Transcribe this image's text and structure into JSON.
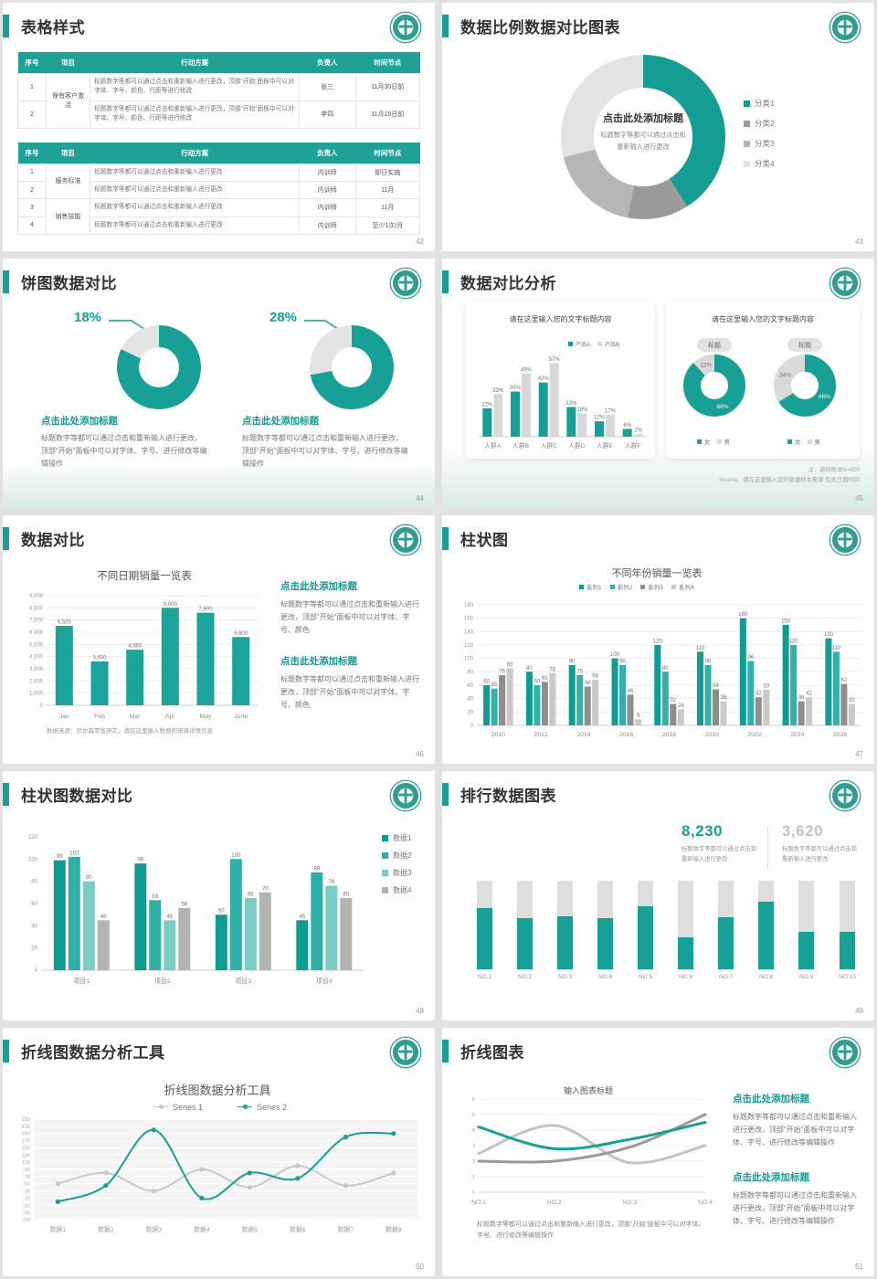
{
  "accent_color": "#17a096",
  "slides": {
    "s42": {
      "title": "表格样式",
      "page": "42",
      "table1": {
        "headers": [
          "序号",
          "项目",
          "行动方案",
          "负责人",
          "时间节点"
        ],
        "group": "保有客户激活",
        "rows": [
          {
            "no": "1",
            "plan": "标题数字等都可以通过点击和重新输入进行更改，顶部“开始”面板中可以对字体、字号、颜色、行距等进行修改",
            "owner": "张三",
            "time": "11月30日前"
          },
          {
            "no": "2",
            "plan": "标题数字等都可以通过点击和重新输入进行更改，顶部“开始”面板中可以对字体、字号、颜色、行距等进行修改",
            "owner": "李四",
            "time": "11月15日前"
          }
        ]
      },
      "table2": {
        "headers": [
          "序号",
          "项目",
          "行动方案",
          "负责人",
          "时间节点"
        ],
        "groups": [
          "服务标准",
          "销售技能"
        ],
        "rows": [
          {
            "no": "1",
            "plan": "标题数字等都可以通过点击和重新输入进行更改",
            "owner": "内训师",
            "time": "即日实施"
          },
          {
            "no": "2",
            "plan": "标题数字等都可以通过点击和重新输入进行更改",
            "owner": "内训师",
            "time": "11月"
          },
          {
            "no": "3",
            "plan": "标题数字等都可以通过点击和重新输入进行更改",
            "owner": "内训师",
            "time": "11月"
          },
          {
            "no": "4",
            "plan": "标题数字等都可以通过点击和重新输入进行更改",
            "owner": "内训师",
            "time": "至少1次/月"
          }
        ]
      }
    },
    "s43": {
      "title": "数据比例数据对比图表",
      "page": "43",
      "center_title": "点击此处添加标题",
      "center_sub1": "标题数字等都可以通过点击和",
      "center_sub2": "重新输入进行更改"
    },
    "s44": {
      "title": "饼图数据对比",
      "page": "44",
      "left": {
        "heading": "点击此处添加标题",
        "body": "标题数字等都可以通过点击和重新输入进行更改，顶部“开始”面板中可以对字体、字号、进行修改等编辑操作"
      },
      "right": {
        "heading": "点击此处添加标题",
        "body": "标题数字等都可以通过点击和重新输入进行更改，顶部“开始”面板中可以对字体、字号、进行修改等编辑操作"
      }
    },
    "s45": {
      "title": "数据对比分析",
      "page": "45",
      "right_card_title": "请在这里输入您的文字标题内容",
      "badge1": "标题",
      "badge2": "标题",
      "note1": "注：调研样本N=500",
      "note2": "Source：请在这里输入您的数据样本来源 包含日期时间"
    },
    "s46": {
      "title": "数据对比",
      "page": "46",
      "source": "数据来源：尼尔森零售研究，请在这里输入数据的来源详情信息",
      "block1": {
        "heading": "点击此处添加标题",
        "body": "标题数字等都可以通过点击和重新输入进行更改，顶部“开始”面板中可以对字体、字号、颜色"
      },
      "block2": {
        "heading": "点击此处添加标题",
        "body": "标题数字等都可以通过点击和重新输入进行更改，顶部“开始”面板中可以对字体、字号、颜色"
      }
    },
    "s47": {
      "title": "柱状图",
      "page": "47"
    },
    "s48": {
      "title": "柱状图数据对比",
      "page": "48"
    },
    "s49": {
      "title": "排行数据图表",
      "page": "49",
      "stat1": {
        "value": "8,230",
        "caption": "标题数字等都可以通过点击和重新输入进行更改"
      },
      "stat2": {
        "value": "3,620",
        "caption": "标题数字等都可以通过点击和重新输入进行更改"
      }
    },
    "s50": {
      "title": "折线图数据分析工具",
      "page": "50"
    },
    "s51": {
      "title": "折线图表",
      "page": "51",
      "block1": {
        "heading": "点击此处添加标题",
        "body": "标题数字等都可以通过点击和重新输入进行更改，顶部“开始”面板中可以对字体、字号、进行修改等编辑操作"
      },
      "block2": {
        "heading": "点击此处添加标题",
        "body": "标题数字等都可以通过点击和重新输入进行更改，顶部“开始”面板中可以对字体、字号、进行修改等编辑操作"
      },
      "footnote": "标题数字等都可以通过点击和重新输入进行更改，顶部“开始”面板中可以对字体、字号、进行修改等编辑操作"
    }
  },
  "chart_data": [
    {
      "id": "donut43",
      "type": "donut",
      "slices": [
        {
          "name": "分类1",
          "value": 41,
          "color": "#149d93"
        },
        {
          "name": "分类2",
          "value": 12,
          "color": "#9a9a9a"
        },
        {
          "name": "分类3",
          "value": 18,
          "color": "#b6b6b6"
        },
        {
          "name": "分类4",
          "value": 29,
          "color": "#e3e3e3"
        }
      ]
    },
    {
      "id": "donut44a",
      "type": "donut",
      "callout": "18%",
      "slices": [
        {
          "value": 82,
          "color": "#17a096"
        },
        {
          "value": 18,
          "color": "#e4e4e4"
        }
      ]
    },
    {
      "id": "donut44b",
      "type": "donut",
      "callout": "28%",
      "slices": [
        {
          "value": 72,
          "color": "#17a096"
        },
        {
          "value": 28,
          "color": "#e4e4e4"
        }
      ]
    },
    {
      "id": "bars45",
      "type": "bar",
      "title": "请在这里输入您的文字标题内容",
      "categories": [
        "人群A",
        "人群B",
        "人群C",
        "人群D",
        "人群E",
        "人群F"
      ],
      "ylim": [
        0,
        68
      ],
      "suffix": "%",
      "show_labels": true,
      "grid": false,
      "series": [
        {
          "name": "产品A",
          "color": "#17a096",
          "values": [
            22,
            35,
            42,
            23,
            12,
            6
          ]
        },
        {
          "name": "产品B",
          "color": "#d8d8d8",
          "values": [
            33,
            49,
            57,
            18,
            17,
            2
          ]
        }
      ]
    },
    {
      "id": "donut45a",
      "type": "donut",
      "show_labels": true,
      "slices": [
        {
          "name": "女",
          "value": 88,
          "color": "#17a096",
          "label": "88%",
          "label_color": "#fff"
        },
        {
          "name": "男",
          "value": 12,
          "color": "#dadada",
          "label": "12%",
          "label_color": "#777"
        }
      ]
    },
    {
      "id": "donut45b",
      "type": "donut",
      "show_labels": true,
      "slices": [
        {
          "name": "女",
          "value": 66,
          "color": "#17a096",
          "label": "66%",
          "label_color": "#fff"
        },
        {
          "name": "男",
          "value": 34,
          "color": "#dadada",
          "label": "34%",
          "label_color": "#777"
        }
      ]
    },
    {
      "id": "bars46",
      "type": "bar",
      "title": "不同日期销量一览表",
      "categories": [
        "Jan",
        "Feb",
        "Mar",
        "Apr",
        "May",
        "June"
      ],
      "ylim": [
        0,
        9000
      ],
      "show_labels": true,
      "yticks": [
        [
          0,
          "0"
        ],
        [
          1000,
          "1,000"
        ],
        [
          2000,
          "2,000"
        ],
        [
          3000,
          "3,000"
        ],
        [
          4000,
          "4,000"
        ],
        [
          5000,
          "5,000"
        ],
        [
          6000,
          "6,000"
        ],
        [
          7000,
          "7,000"
        ],
        [
          8000,
          "8,000"
        ],
        [
          9000,
          "9,000"
        ]
      ],
      "series": [
        {
          "name": "销量",
          "color": "#1ba49a",
          "values": [
            6520,
            3600,
            4560,
            8000,
            7600,
            5600
          ],
          "labels": [
            "6,520",
            "3,600",
            "4,560",
            "8,000",
            "7,600",
            "5,600"
          ]
        }
      ]
    },
    {
      "id": "bars47",
      "type": "bar",
      "title": "不同年份销量一览表",
      "categories": [
        "2010",
        "2012",
        "2014",
        "2016",
        "2018",
        "2020",
        "2022",
        "2024",
        "2026"
      ],
      "yaxis": {
        "min": 0,
        "max": 180,
        "step": 20
      },
      "show_labels": true,
      "series": [
        {
          "name": "系列1",
          "color": "#0f9c92",
          "values": [
            60,
            80,
            90,
            100,
            120,
            110,
            160,
            150,
            130
          ]
        },
        {
          "name": "系列2",
          "color": "#33b1a7",
          "values": [
            55,
            60,
            75,
            90,
            80,
            90,
            96,
            120,
            110
          ]
        },
        {
          "name": "系列3",
          "color": "#8e8e8e",
          "values": [
            75,
            65,
            58,
            46,
            32,
            54,
            42,
            36,
            62
          ]
        },
        {
          "name": "系列4",
          "color": "#c9c9c9",
          "values": [
            85,
            78,
            68,
            9,
            24,
            36,
            53,
            42,
            32
          ]
        }
      ]
    },
    {
      "id": "bars48",
      "type": "bar",
      "categories": [
        "项目1",
        "项目2",
        "项目3",
        "项目4"
      ],
      "yaxis": {
        "min": 0,
        "max": 120,
        "step": 20
      },
      "grid": false,
      "show_labels": true,
      "series": [
        {
          "name": "数据1",
          "color": "#0f9c92",
          "values": [
            99,
            96,
            50,
            45
          ]
        },
        {
          "name": "数据2",
          "color": "#2fb0a6",
          "values": [
            102,
            63,
            100,
            88
          ]
        },
        {
          "name": "数据3",
          "color": "#7accc4",
          "values": [
            80,
            45,
            65,
            76
          ]
        },
        {
          "name": "数据4",
          "color": "#b3b3b3",
          "values": [
            45,
            56,
            70,
            65
          ]
        }
      ]
    },
    {
      "id": "rank49",
      "type": "rank",
      "categories": [
        "NO.1",
        "NO.2",
        "NO.3",
        "NO.4",
        "NO.5",
        "NO.6",
        "NO.7",
        "NO.8",
        "NO.9",
        "NO.10"
      ],
      "fill_pct": [
        69,
        58,
        60,
        58,
        71,
        36,
        59,
        76,
        42,
        42
      ],
      "bar_color": "#17a096",
      "rest_color": "#dedede"
    },
    {
      "id": "line50",
      "type": "line",
      "title": "折线图数据分析工具",
      "categories": [
        "数据1",
        "数据2",
        "数据3",
        "数据4",
        "数据5",
        "数据6",
        "数据7",
        "数据8"
      ],
      "yaxis": {
        "min": -50,
        "max": 230,
        "step": 20
      },
      "plot_bg": "#f5f5f5",
      "grid_color": "#ffffff",
      "markers": true,
      "lw": 2,
      "slot_centered": true,
      "series": [
        {
          "name": "Series 1",
          "color": "#c9c9c9",
          "values": [
            50,
            80,
            30,
            90,
            40,
            100,
            45,
            80
          ]
        },
        {
          "name": "Series 2",
          "color": "#17a096",
          "values": [
            0,
            45,
            200,
            10,
            80,
            65,
            180,
            190
          ]
        }
      ]
    },
    {
      "id": "line51",
      "type": "line",
      "title": "输入图表标题",
      "categories": [
        "NO.1",
        "NO.2",
        "NO.3",
        "NO.4"
      ],
      "yaxis": {
        "min": 0,
        "max": 6,
        "step": 1
      },
      "grid_color": "#f0f0f0",
      "markers": false,
      "lw": 3,
      "slot_centered": false,
      "baseline": true,
      "series": [
        {
          "color": "#c3c3c3",
          "values": [
            2.5,
            4.3,
            1.9,
            3.0
          ]
        },
        {
          "color": "#9a9a9a",
          "values": [
            2.0,
            2.0,
            2.9,
            5.0
          ]
        },
        {
          "color": "#17a096",
          "values": [
            4.2,
            2.8,
            3.4,
            4.5
          ]
        }
      ]
    }
  ]
}
